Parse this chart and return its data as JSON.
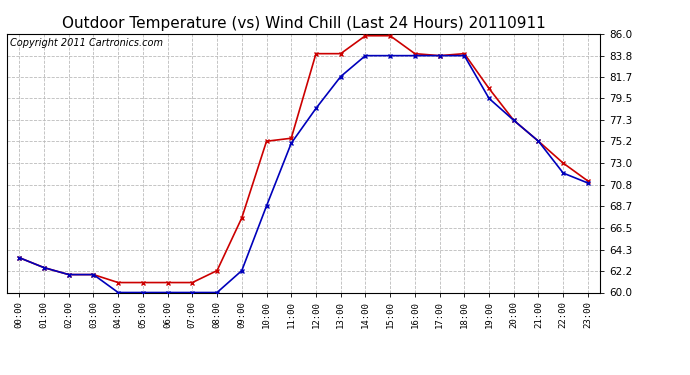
{
  "title": "Outdoor Temperature (vs) Wind Chill (Last 24 Hours) 20110911",
  "copyright": "Copyright 2011 Cartronics.com",
  "hours": [
    "00:00",
    "01:00",
    "02:00",
    "03:00",
    "04:00",
    "05:00",
    "06:00",
    "07:00",
    "08:00",
    "09:00",
    "10:00",
    "11:00",
    "12:00",
    "13:00",
    "14:00",
    "15:00",
    "16:00",
    "17:00",
    "18:00",
    "19:00",
    "20:00",
    "21:00",
    "22:00",
    "23:00"
  ],
  "outdoor_temp": [
    63.5,
    62.5,
    61.8,
    61.8,
    61.0,
    61.0,
    61.0,
    61.0,
    62.2,
    67.5,
    75.2,
    75.5,
    84.0,
    84.0,
    85.8,
    85.8,
    84.0,
    83.8,
    84.0,
    80.5,
    77.3,
    75.2,
    73.0,
    71.2
  ],
  "wind_chill": [
    63.5,
    62.5,
    61.8,
    61.8,
    60.0,
    60.0,
    60.0,
    60.0,
    60.0,
    62.2,
    68.7,
    75.0,
    78.5,
    81.7,
    83.8,
    83.8,
    83.8,
    83.8,
    83.8,
    79.5,
    77.3,
    75.2,
    72.0,
    71.0
  ],
  "temp_color": "#cc0000",
  "wind_color": "#0000bb",
  "bg_color": "#ffffff",
  "plot_bg_color": "#ffffff",
  "grid_color": "#bbbbbb",
  "ylim": [
    60.0,
    86.0
  ],
  "yticks": [
    60.0,
    62.2,
    64.3,
    66.5,
    68.7,
    70.8,
    73.0,
    75.2,
    77.3,
    79.5,
    81.7,
    83.8,
    86.0
  ],
  "title_fontsize": 11,
  "copyright_fontsize": 7
}
